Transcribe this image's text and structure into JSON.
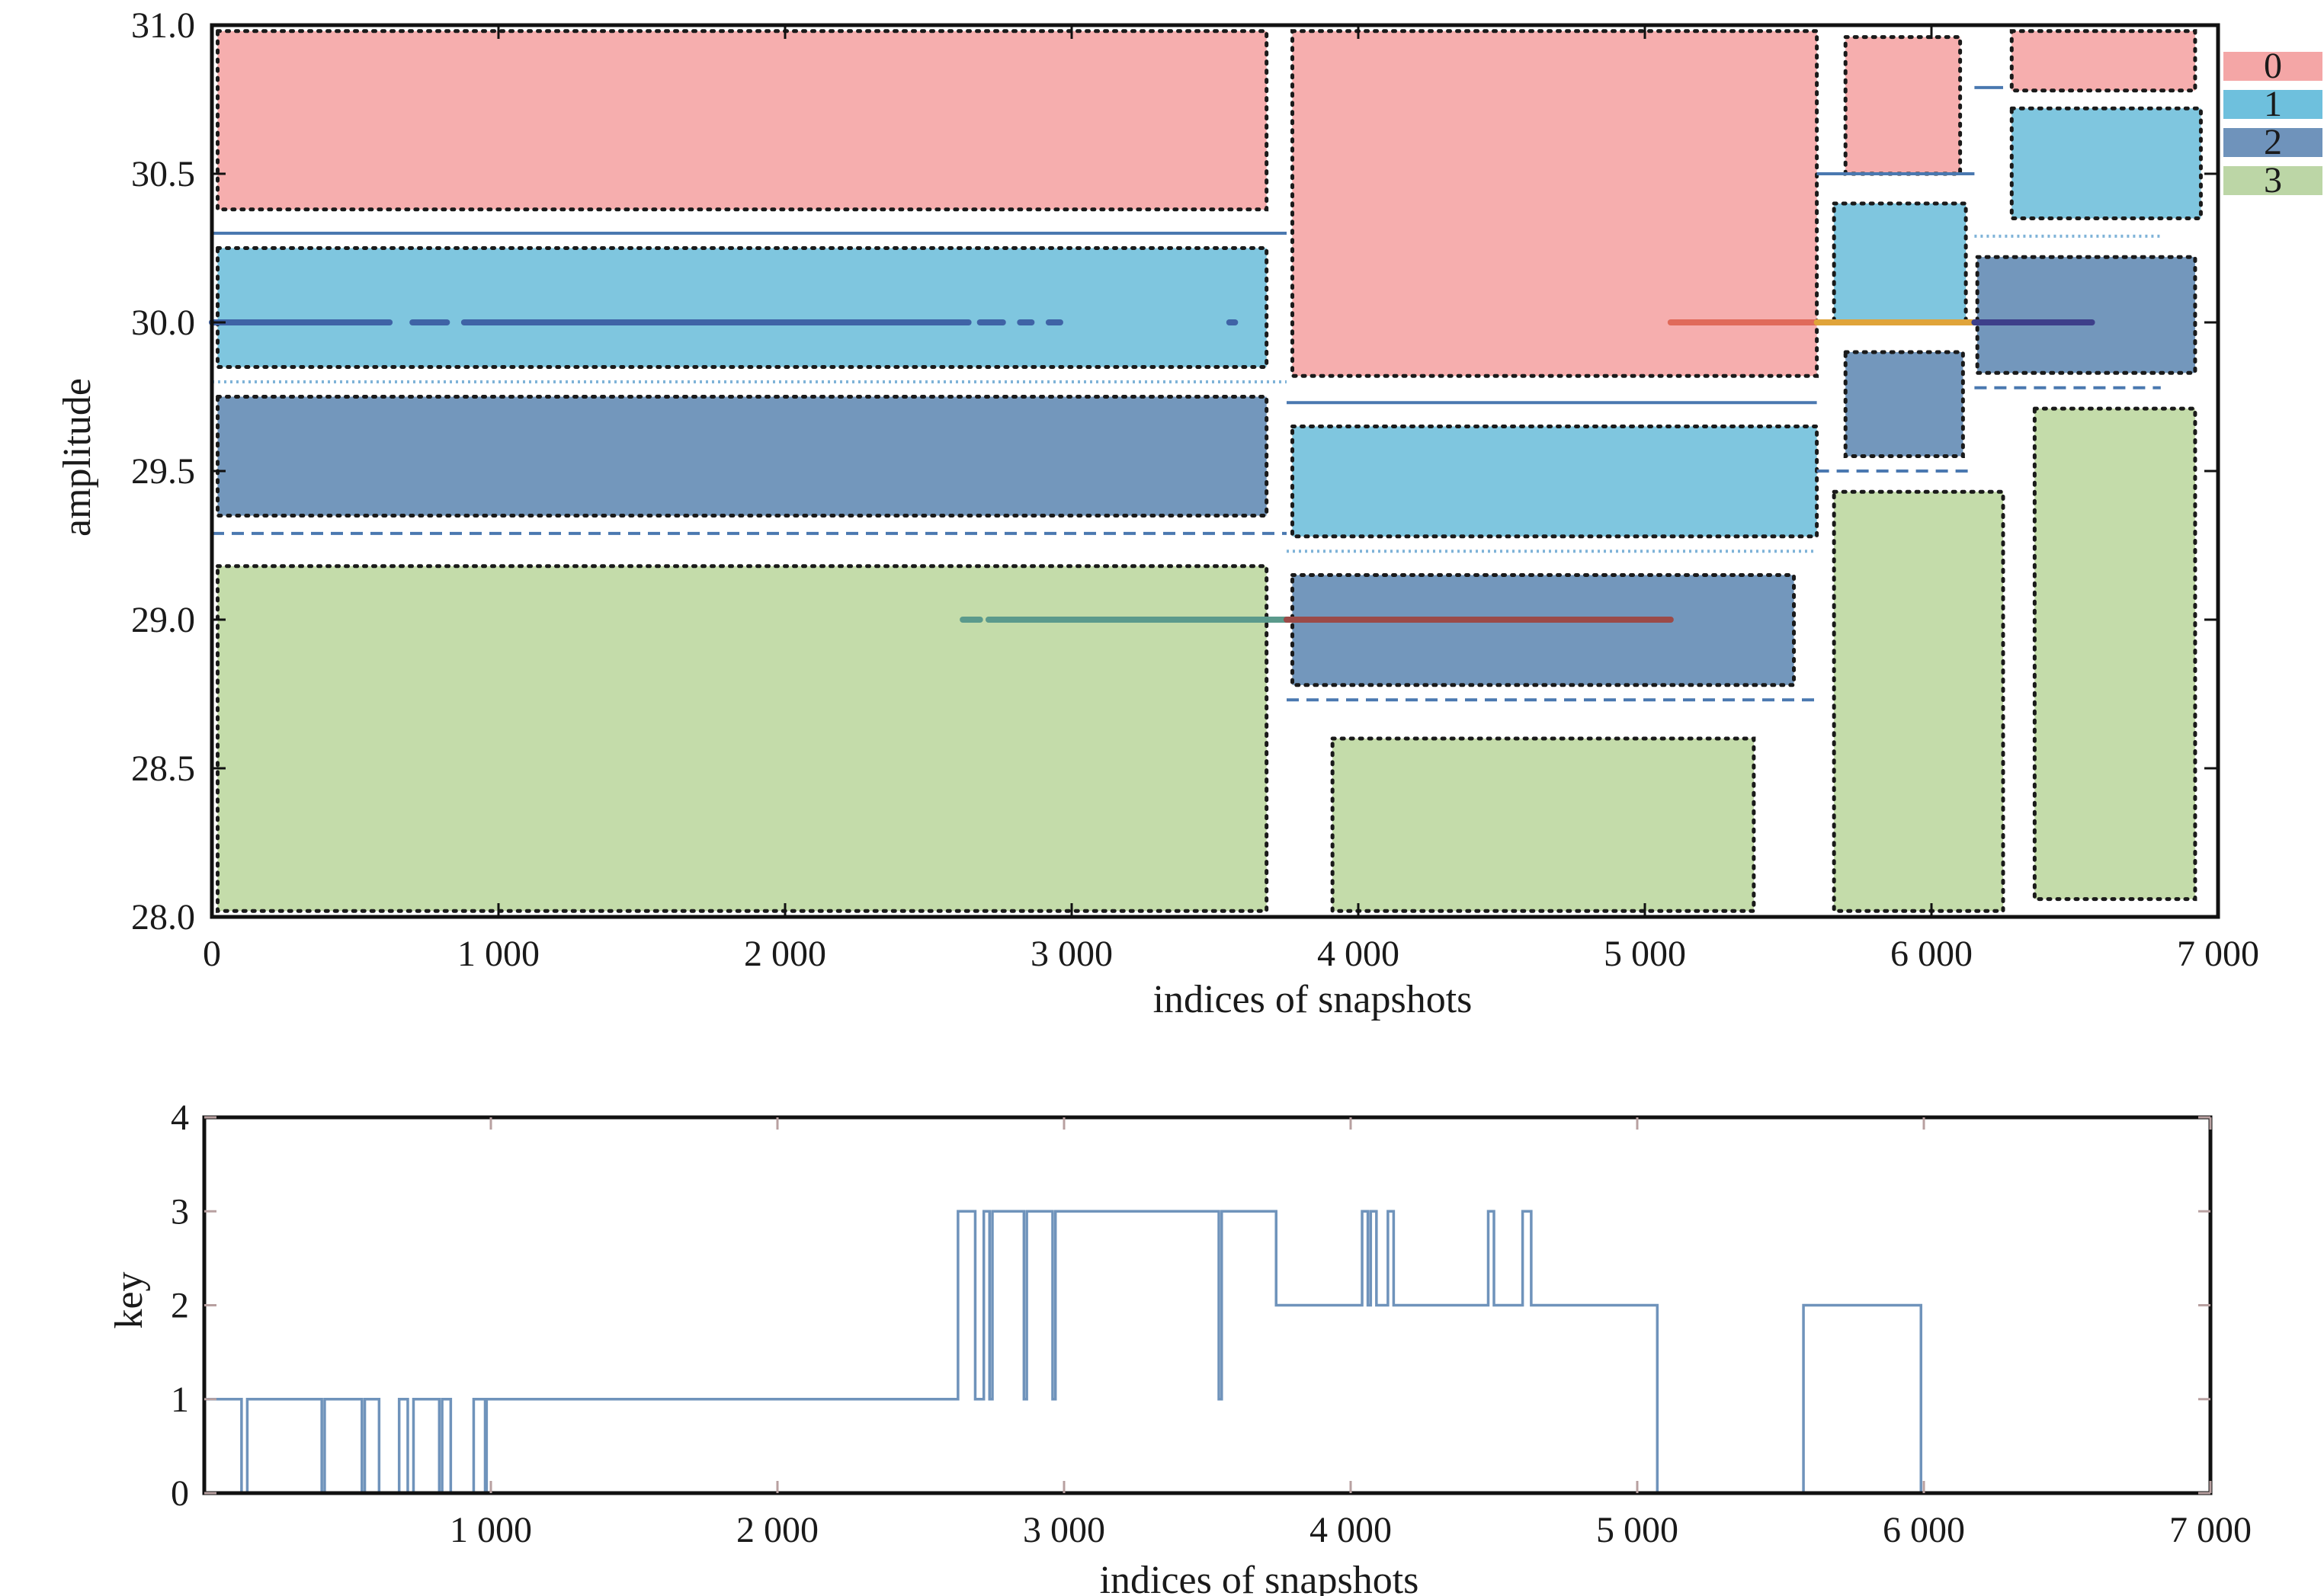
{
  "chart_data": [
    {
      "type": "map",
      "xlabel": "indices of snapshots",
      "ylabel": "amplitude",
      "xlim": [
        0,
        7000
      ],
      "ylim": [
        28.0,
        31.0
      ],
      "xticks": [
        0,
        1000,
        2000,
        3000,
        4000,
        5000,
        6000,
        7000
      ],
      "xtick_labels": [
        "0",
        "1 000",
        "2 000",
        "3 000",
        "4 000",
        "5 000",
        "6 000",
        "7 000"
      ],
      "yticks": [
        28.0,
        28.5,
        29.0,
        29.5,
        30.0,
        30.5,
        31.0
      ],
      "ytick_labels": [
        "28.0",
        "28.5",
        "29.0",
        "29.5",
        "30.0",
        "30.5",
        "31.0"
      ],
      "legend": {
        "position": "right",
        "entries": [
          {
            "label": "0",
            "color": "#f4a6a6"
          },
          {
            "label": "1",
            "color": "#6ec0dd"
          },
          {
            "label": "2",
            "color": "#6f93bb"
          },
          {
            "label": "3",
            "color": "#bcd6a6"
          }
        ]
      },
      "colors": {
        "0": "#f6aeae",
        "1": "#7fc6df",
        "2": "#7397bc",
        "3": "#c4dcaa"
      },
      "regions": [
        {
          "key": "0",
          "x0": 20,
          "x1": 3680,
          "y0": 30.38,
          "y1": 30.98
        },
        {
          "key": "1",
          "x0": 20,
          "x1": 3680,
          "y0": 29.85,
          "y1": 30.25
        },
        {
          "key": "2",
          "x0": 20,
          "x1": 3680,
          "y0": 29.35,
          "y1": 29.75
        },
        {
          "key": "3",
          "x0": 20,
          "x1": 3680,
          "y0": 28.02,
          "y1": 29.18
        },
        {
          "key": "0",
          "x0": 3770,
          "x1": 5600,
          "y0": 29.82,
          "y1": 30.98
        },
        {
          "key": "1",
          "x0": 3770,
          "x1": 5600,
          "y0": 29.28,
          "y1": 29.65
        },
        {
          "key": "2",
          "x0": 3770,
          "x1": 5520,
          "y0": 28.78,
          "y1": 29.15
        },
        {
          "key": "3",
          "x0": 3910,
          "x1": 5380,
          "y0": 28.02,
          "y1": 28.6
        },
        {
          "key": "0",
          "x0": 5700,
          "x1": 6100,
          "y0": 30.5,
          "y1": 30.96
        },
        {
          "key": "1",
          "x0": 5660,
          "x1": 6120,
          "y0": 30.0,
          "y1": 30.4
        },
        {
          "key": "2",
          "x0": 5700,
          "x1": 6110,
          "y0": 29.55,
          "y1": 29.9
        },
        {
          "key": "3",
          "x0": 5660,
          "x1": 6250,
          "y0": 28.02,
          "y1": 29.43
        },
        {
          "key": "0",
          "x0": 6280,
          "x1": 6920,
          "y0": 30.78,
          "y1": 30.98
        },
        {
          "key": "1",
          "x0": 6280,
          "x1": 6940,
          "y0": 30.35,
          "y1": 30.72
        },
        {
          "key": "2",
          "x0": 6160,
          "x1": 6920,
          "y0": 29.83,
          "y1": 30.22
        },
        {
          "key": "3",
          "x0": 6360,
          "x1": 6920,
          "y0": 28.06,
          "y1": 29.71
        }
      ],
      "boundaries": [
        {
          "style": "solid",
          "x0": 0,
          "x1": 3750,
          "y": 30.3
        },
        {
          "style": "dotted",
          "x0": 0,
          "x1": 3750,
          "y": 29.8
        },
        {
          "style": "dashed",
          "x0": 0,
          "x1": 3750,
          "y": 29.29
        },
        {
          "style": "solid",
          "x0": 3750,
          "x1": 5600,
          "y": 29.73
        },
        {
          "style": "dotted",
          "x0": 3750,
          "x1": 5600,
          "y": 29.23
        },
        {
          "style": "dashed",
          "x0": 3750,
          "x1": 5600,
          "y": 28.73
        },
        {
          "style": "solid",
          "x0": 5600,
          "x1": 6150,
          "y": 30.5
        },
        {
          "style": "dashed",
          "x0": 5600,
          "x1": 6150,
          "y": 29.5
        },
        {
          "style": "solid",
          "x0": 6150,
          "x1": 6250,
          "y": 30.79
        },
        {
          "style": "dotted",
          "x0": 6150,
          "x1": 6800,
          "y": 30.29
        },
        {
          "style": "dashed",
          "x0": 6150,
          "x1": 6800,
          "y": 29.78
        }
      ],
      "signal_traces": [
        {
          "key": "1",
          "y": 30.0,
          "x": [
            [
              0,
              620
            ],
            [
              700,
              820
            ],
            [
              880,
              2640
            ],
            [
              2680,
              2760
            ],
            [
              2820,
              2860
            ],
            [
              2920,
              2960
            ],
            [
              3550,
              3570
            ]
          ]
        },
        {
          "key": "3",
          "y": 29.0,
          "x": [
            [
              2620,
              2680
            ],
            [
              2710,
              3750
            ]
          ]
        },
        {
          "key": "2",
          "y": 29.0,
          "x": [
            [
              3750,
              5090
            ]
          ]
        },
        {
          "key": "0",
          "y": 30.0,
          "x": [
            [
              5090,
              5600
            ]
          ]
        },
        {
          "key": "2",
          "y": 30.0,
          "x": [
            [
              5600,
              6150
            ]
          ]
        },
        {
          "key": "2",
          "y": 30.0,
          "x": [
            [
              6150,
              6560
            ]
          ]
        }
      ]
    },
    {
      "type": "line",
      "xlabel": "indices of snapshots",
      "ylabel": "key",
      "xlim": [
        0,
        7000
      ],
      "ylim": [
        0,
        4
      ],
      "xticks": [
        1000,
        2000,
        3000,
        4000,
        5000,
        6000,
        7000
      ],
      "xtick_labels": [
        "1 000",
        "2 000",
        "3 000",
        "4 000",
        "5 000",
        "6 000",
        "7 000"
      ],
      "yticks": [
        0,
        1,
        2,
        3,
        4
      ],
      "ytick_labels": [
        "0",
        "1",
        "2",
        "3",
        "4"
      ],
      "series": [
        {
          "color": "#6f93bb",
          "steps": [
            [
              0,
              1
            ],
            [
              130,
              0
            ],
            [
              150,
              1
            ],
            [
              410,
              0
            ],
            [
              420,
              1
            ],
            [
              550,
              0
            ],
            [
              560,
              1
            ],
            [
              610,
              0
            ],
            [
              680,
              1
            ],
            [
              710,
              0
            ],
            [
              730,
              1
            ],
            [
              820,
              0
            ],
            [
              830,
              1
            ],
            [
              860,
              0
            ],
            [
              940,
              1
            ],
            [
              980,
              0
            ],
            [
              985,
              1
            ],
            [
              2630,
              3
            ],
            [
              2690,
              1
            ],
            [
              2720,
              3
            ],
            [
              2740,
              1
            ],
            [
              2750,
              3
            ],
            [
              2860,
              1
            ],
            [
              2870,
              3
            ],
            [
              2960,
              1
            ],
            [
              2970,
              3
            ],
            [
              3540,
              1
            ],
            [
              3550,
              3
            ],
            [
              3740,
              2
            ],
            [
              4040,
              3
            ],
            [
              4060,
              2
            ],
            [
              4070,
              3
            ],
            [
              4090,
              2
            ],
            [
              4130,
              3
            ],
            [
              4150,
              2
            ],
            [
              4480,
              3
            ],
            [
              4500,
              2
            ],
            [
              4600,
              3
            ],
            [
              4630,
              2
            ],
            [
              5070,
              0
            ],
            [
              5580,
              2
            ],
            [
              5990,
              0
            ],
            [
              7000,
              0
            ]
          ]
        }
      ]
    }
  ]
}
